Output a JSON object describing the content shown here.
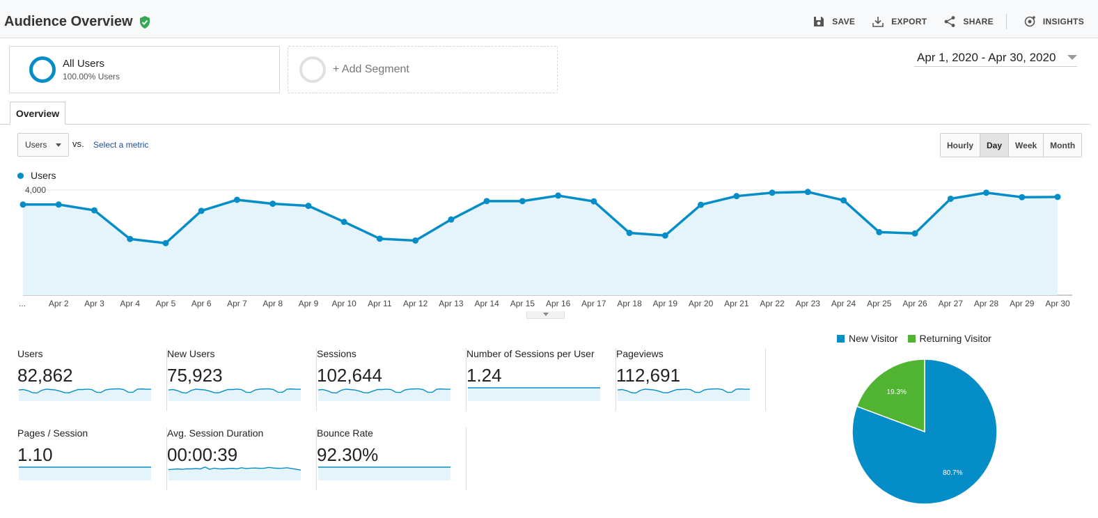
{
  "header": {
    "title": "Audience Overview",
    "actions": [
      {
        "label": "SAVE",
        "icon": "floppy-icon"
      },
      {
        "label": "EXPORT",
        "icon": "download-icon"
      },
      {
        "label": "SHARE",
        "icon": "share-icon"
      },
      {
        "label": "INSIGHTS",
        "icon": "insights-icon"
      }
    ]
  },
  "segments": {
    "all_users": {
      "name": "All Users",
      "sub": "100.00% Users"
    },
    "add_segment": "+ Add Segment"
  },
  "date_range": "Apr 1, 2020 - Apr 30, 2020",
  "tabs": {
    "overview": "Overview"
  },
  "controls": {
    "metric": "Users",
    "vs": "vs.",
    "select_metric": "Select a metric",
    "granularity": [
      "Hourly",
      "Day",
      "Week",
      "Month"
    ],
    "active_granularity": "Day"
  },
  "colors": {
    "primary": "#058dc7",
    "secondary": "#50b432",
    "fill": "#e5f3fa"
  },
  "chart_data": [
    {
      "type": "line",
      "legend": "Users",
      "x": [
        "...",
        "Apr 2",
        "Apr 3",
        "Apr 4",
        "Apr 5",
        "Apr 6",
        "Apr 7",
        "Apr 8",
        "Apr 9",
        "Apr 10",
        "Apr 11",
        "Apr 12",
        "Apr 13",
        "Apr 14",
        "Apr 15",
        "Apr 16",
        "Apr 17",
        "Apr 18",
        "Apr 19",
        "Apr 20",
        "Apr 21",
        "Apr 22",
        "Apr 23",
        "Apr 24",
        "Apr 25",
        "Apr 26",
        "Apr 27",
        "Apr 28",
        "Apr 29",
        "Apr 30"
      ],
      "series": [
        {
          "name": "Users",
          "values": [
            3450,
            3450,
            3230,
            2140,
            1980,
            3210,
            3630,
            3480,
            3400,
            2790,
            2150,
            2080,
            2880,
            3580,
            3580,
            3790,
            3570,
            2370,
            2270,
            3440,
            3770,
            3900,
            3930,
            3610,
            2400,
            2350,
            3670,
            3900,
            3730,
            3740
          ]
        }
      ],
      "y_ticks": [
        "2,000",
        "4,000"
      ],
      "ylim": [
        0,
        4000
      ],
      "grid": true
    },
    {
      "type": "pie",
      "legend": [
        "New Visitor",
        "Returning Visitor"
      ],
      "slices": [
        {
          "name": "New Visitor",
          "value": 80.7,
          "label": "80.7%",
          "color": "#058dc7"
        },
        {
          "name": "Returning Visitor",
          "value": 19.3,
          "label": "19.3%",
          "color": "#50b432"
        }
      ]
    }
  ],
  "metrics": [
    {
      "label": "Users",
      "value": "82,862",
      "spark": "wavy"
    },
    {
      "label": "New Users",
      "value": "75,923",
      "spark": "wavy"
    },
    {
      "label": "Sessions",
      "value": "102,644",
      "spark": "wavy"
    },
    {
      "label": "Number of Sessions per User",
      "value": "1.24",
      "spark": "flat"
    },
    {
      "label": "Pageviews",
      "value": "112,691",
      "spark": "wavy"
    },
    {
      "label": "Pages / Session",
      "value": "1.10",
      "spark": "flat"
    },
    {
      "label": "Avg. Session Duration",
      "value": "00:00:39",
      "spark": "jitter"
    },
    {
      "label": "Bounce Rate",
      "value": "92.30%",
      "spark": "flat"
    }
  ]
}
